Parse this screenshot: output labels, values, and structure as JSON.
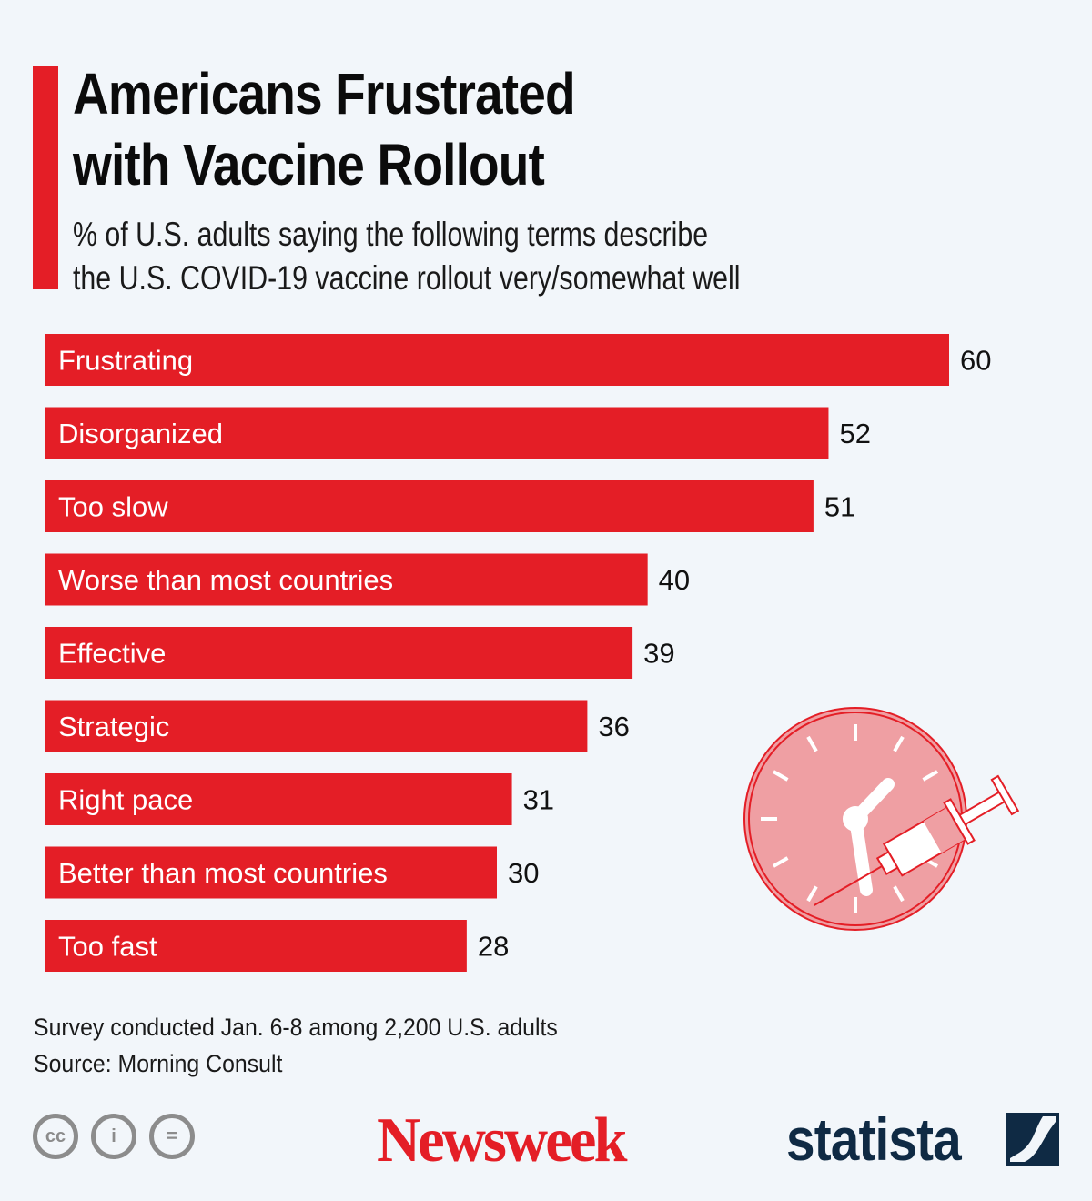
{
  "header": {
    "title_line1": "Americans Frustrated",
    "title_line2": "with Vaccine Rollout",
    "subtitle_line1": "% of U.S. adults saying the following terms describe",
    "subtitle_line2": "the U.S. COVID-19 vaccine rollout very/somewhat well"
  },
  "colors": {
    "accent": "#e41e26",
    "bar": "#e41e26",
    "bar_label": "#ffffff",
    "value_label": "#111111",
    "background": "#f2f6fa",
    "statista_navy": "#0f2a44"
  },
  "chart_data": {
    "type": "bar",
    "orientation": "horizontal",
    "title": "Americans Frustrated with Vaccine Rollout",
    "subtitle": "% of U.S. adults saying the following terms describe the U.S. COVID-19 vaccine rollout very/somewhat well",
    "categories": [
      "Frustrating",
      "Disorganized",
      "Too slow",
      "Worse than most countries",
      "Effective",
      "Strategic",
      "Right pace",
      "Better than most countries",
      "Too fast"
    ],
    "values": [
      60,
      52,
      51,
      40,
      39,
      36,
      31,
      30,
      28
    ],
    "unit": "%",
    "xlabel": "",
    "ylabel": "",
    "xlim": [
      0,
      60
    ],
    "grid": false,
    "legend": "none",
    "labels_inside_bars": true,
    "value_labels": true
  },
  "footer": {
    "note": "Survey conducted Jan. 6-8 among 2,200 U.S. adults",
    "source": "Source: Morning Consult",
    "license_icons": [
      "cc-icon",
      "attribution-icon",
      "no-derivatives-icon"
    ],
    "license_glyphs": [
      "cc",
      "i",
      "="
    ],
    "newsweek_logo": "Newsweek",
    "statista_logo": "statista"
  },
  "illustration": {
    "name": "clock-with-syringe-icon"
  }
}
